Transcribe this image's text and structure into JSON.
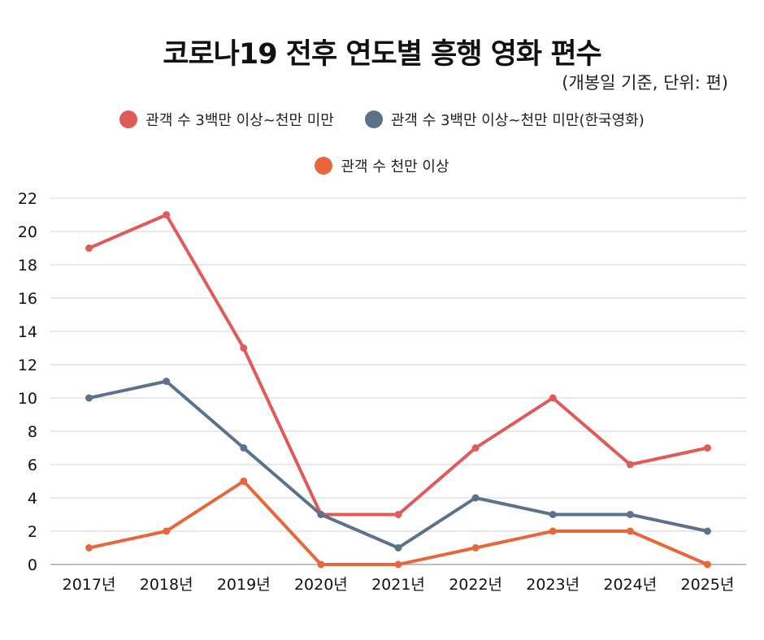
{
  "title": "코로나19 전후 연도별 흥행 영화 편수",
  "subtitle": "(개봉일 기준, 단위: 편)",
  "chart_data": {
    "type": "line",
    "title": "코로나19 전후 연도별 흥행 영화 편수",
    "subtitle": "(개봉일 기준, 단위: 편)",
    "xlabel": "",
    "ylabel": "",
    "categories": [
      "2017년",
      "2018년",
      "2019년",
      "2020년",
      "2021년",
      "2022년",
      "2023년",
      "2024년",
      "2025년"
    ],
    "ylim": [
      0,
      22
    ],
    "yticks": [
      "0",
      "2",
      "4",
      "6",
      "8",
      "10",
      "12",
      "14",
      "16",
      "18",
      "20",
      "22"
    ],
    "grid": true,
    "legend_position": "top-center",
    "series": [
      {
        "name": "관객 수 3백만 이상~천만 미만",
        "color": "#e05a5a",
        "values": [
          19,
          21,
          13,
          3,
          3,
          7,
          10,
          6,
          7
        ]
      },
      {
        "name": "관객 수 3백만 이상~천만 미만(한국영화)",
        "color": "#5d7189",
        "values": [
          10,
          11,
          7,
          3,
          1,
          4,
          3,
          3,
          2
        ]
      },
      {
        "name": "관객 수 천만 이상",
        "color": "#e8673a",
        "values": [
          1,
          2,
          5,
          0,
          0,
          1,
          2,
          2,
          0
        ]
      }
    ]
  }
}
